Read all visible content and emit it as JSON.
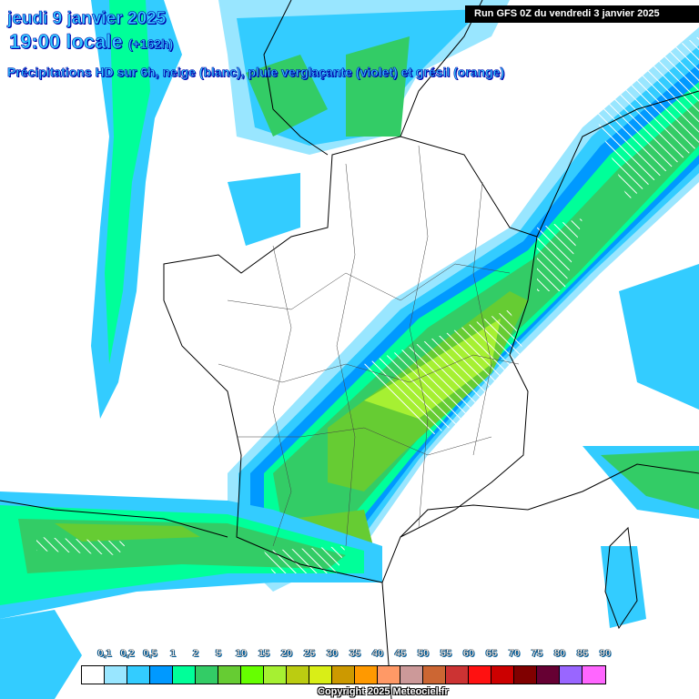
{
  "header": {
    "date": "jeudi 9 janvier 2025",
    "time": "19:00 locale",
    "lead": "(+162h)",
    "subtitle": "Précipitations HD sur 6h, neige (blanc), pluie verglaçante (violet) et grésil (orange)",
    "run": "Run GFS 0Z du vendredi 3 janvier 2025"
  },
  "legend": {
    "colors": [
      "#ffffff",
      "#99e6ff",
      "#33ccff",
      "#0099ff",
      "#00ff99",
      "#33cc66",
      "#66cc33",
      "#66ff00",
      "#a6f032",
      "#bbcc11",
      "#d9ee17",
      "#cc9900",
      "#ff9900",
      "#ff9966",
      "#cc9999",
      "#cc6633",
      "#cc3333",
      "#ff1111",
      "#cc0000",
      "#800000",
      "#660033",
      "#9966ff",
      "#ff66ff"
    ],
    "labels": [
      "0,1",
      "0,2",
      "0,5",
      "1",
      "2",
      "5",
      "10",
      "15",
      "20",
      "25",
      "30",
      "35",
      "40",
      "45",
      "50",
      "55",
      "60",
      "65",
      "70",
      "75",
      "80",
      "85",
      "90"
    ]
  },
  "copyright": "Copyright 2025 Meteociel.fr"
}
